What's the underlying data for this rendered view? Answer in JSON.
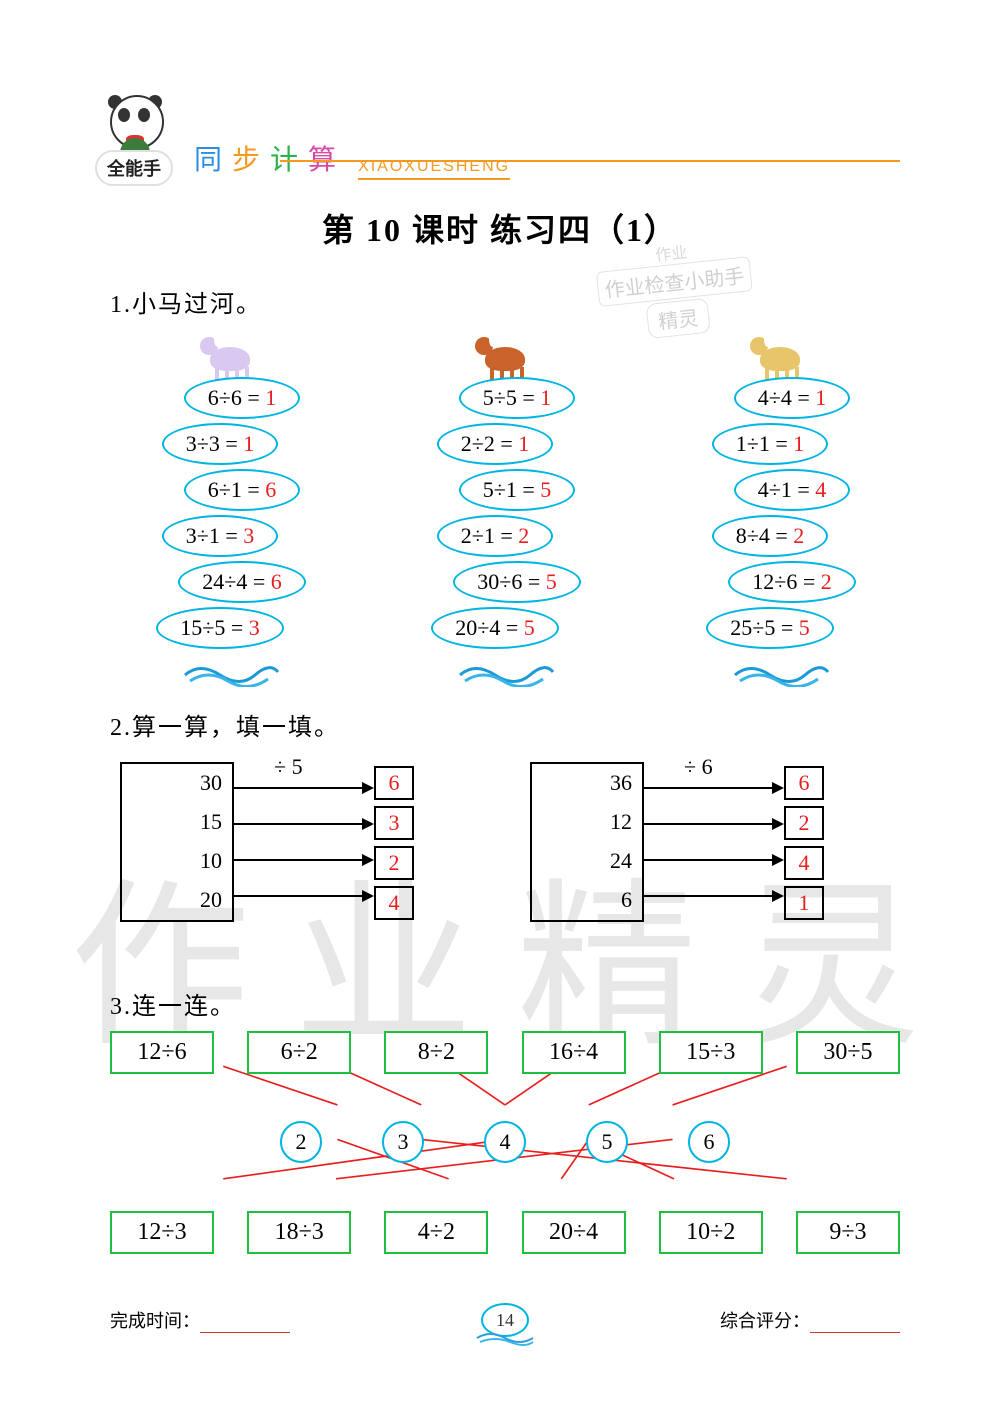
{
  "header": {
    "badge_label": "全能手",
    "script_chars": [
      "同",
      "步",
      "计",
      "算"
    ],
    "script_colors": [
      "#2b8fe0",
      "#f59a1e",
      "#2bb34a",
      "#d94aa5"
    ],
    "pinyin": "XIAOXUESHENG"
  },
  "title": "第 10 课时   练习四（1）",
  "watermark_chars": [
    "作",
    "业",
    "精",
    "灵"
  ],
  "stamp": {
    "line0": "作业",
    "line1": "作业检查小助手",
    "line2": "精灵"
  },
  "section1": {
    "heading": "1.小马过河。",
    "columns": [
      {
        "horse_class": "a",
        "stones": [
          {
            "expr": "6÷6 =",
            "ans": "1"
          },
          {
            "expr": "3÷3 =",
            "ans": "1"
          },
          {
            "expr": "6÷1 =",
            "ans": "6"
          },
          {
            "expr": "3÷1 =",
            "ans": "3"
          },
          {
            "expr": "24÷4 =",
            "ans": "6"
          },
          {
            "expr": "15÷5 =",
            "ans": "3"
          }
        ]
      },
      {
        "horse_class": "b",
        "stones": [
          {
            "expr": "5÷5 =",
            "ans": "1"
          },
          {
            "expr": "2÷2 =",
            "ans": "1"
          },
          {
            "expr": "5÷1 =",
            "ans": "5"
          },
          {
            "expr": "2÷1 =",
            "ans": "2"
          },
          {
            "expr": "30÷6 =",
            "ans": "5"
          },
          {
            "expr": "20÷4 =",
            "ans": "5"
          }
        ]
      },
      {
        "horse_class": "c",
        "stones": [
          {
            "expr": "4÷4 =",
            "ans": "1"
          },
          {
            "expr": "1÷1 =",
            "ans": "1"
          },
          {
            "expr": "4÷1 =",
            "ans": "4"
          },
          {
            "expr": "8÷4 =",
            "ans": "2"
          },
          {
            "expr": "12÷6 =",
            "ans": "2"
          },
          {
            "expr": "25÷5 =",
            "ans": "5"
          }
        ]
      }
    ],
    "stone_border": "#00b5e2",
    "answer_color": "#e81e1e"
  },
  "section2": {
    "heading": "2.算一算，填一填。",
    "groups": [
      {
        "op": "÷ 5",
        "rows": [
          {
            "in": "30",
            "out": "6"
          },
          {
            "in": "15",
            "out": "3"
          },
          {
            "in": "10",
            "out": "2"
          },
          {
            "in": "20",
            "out": "4"
          }
        ]
      },
      {
        "op": "÷ 6",
        "rows": [
          {
            "in": "36",
            "out": "6"
          },
          {
            "in": "12",
            "out": "2"
          },
          {
            "in": "24",
            "out": "4"
          },
          {
            "in": "6",
            "out": "1"
          }
        ]
      }
    ]
  },
  "section3": {
    "heading": "3.连一连。",
    "top_exprs": [
      "12÷6",
      "6÷2",
      "8÷2",
      "16÷4",
      "15÷3",
      "30÷5"
    ],
    "mid_values": [
      "2",
      "3",
      "4",
      "5",
      "6"
    ],
    "bot_exprs": [
      "12÷3",
      "18÷3",
      "4÷2",
      "20÷4",
      "10÷2",
      "9÷3"
    ],
    "box_border": "#1fbf3f",
    "circle_border": "#00b5e2",
    "line_color": "#e81e1e",
    "top_to_mid": [
      [
        0,
        0
      ],
      [
        1,
        1
      ],
      [
        2,
        2
      ],
      [
        3,
        2
      ],
      [
        4,
        3
      ],
      [
        5,
        4
      ]
    ],
    "bot_to_mid": [
      [
        0,
        2
      ],
      [
        1,
        4
      ],
      [
        2,
        0
      ],
      [
        3,
        3
      ],
      [
        4,
        3
      ],
      [
        5,
        1
      ]
    ]
  },
  "footer": {
    "left_label": "完成时间：",
    "right_label": "综合评分：",
    "page_number": "14"
  }
}
